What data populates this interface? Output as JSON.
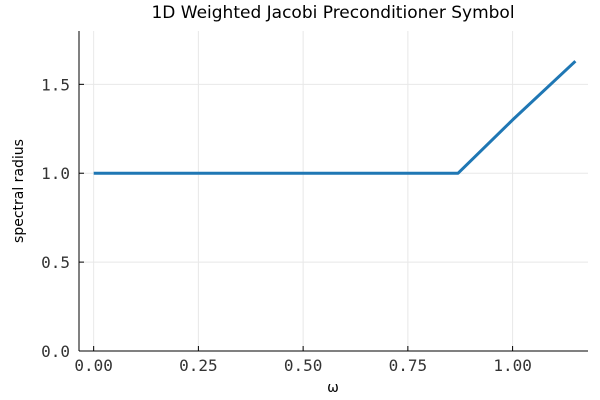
{
  "chart_data": {
    "type": "line",
    "title": "1D Weighted Jacobi Preconditioner Symbol",
    "xlabel": "ω",
    "ylabel": "spectral radius",
    "xlim": [
      -0.035,
      1.18
    ],
    "ylim": [
      0.0,
      1.8
    ],
    "xticks": [
      0.0,
      0.25,
      0.5,
      0.75,
      1.0
    ],
    "xtick_labels": [
      "0.00",
      "0.25",
      "0.50",
      "0.75",
      "1.00"
    ],
    "yticks": [
      0.0,
      0.5,
      1.0,
      1.5
    ],
    "ytick_labels": [
      "0.0",
      "0.5",
      "1.0",
      "1.5"
    ],
    "grid": true,
    "legend": "none",
    "series": [
      {
        "color": "#1f77b4",
        "x": [
          0.0,
          0.25,
          0.5,
          0.75,
          0.87,
          1.0,
          1.15
        ],
        "y": [
          1.0,
          1.0,
          1.0,
          1.0,
          1.0,
          1.3,
          1.63
        ]
      }
    ]
  }
}
